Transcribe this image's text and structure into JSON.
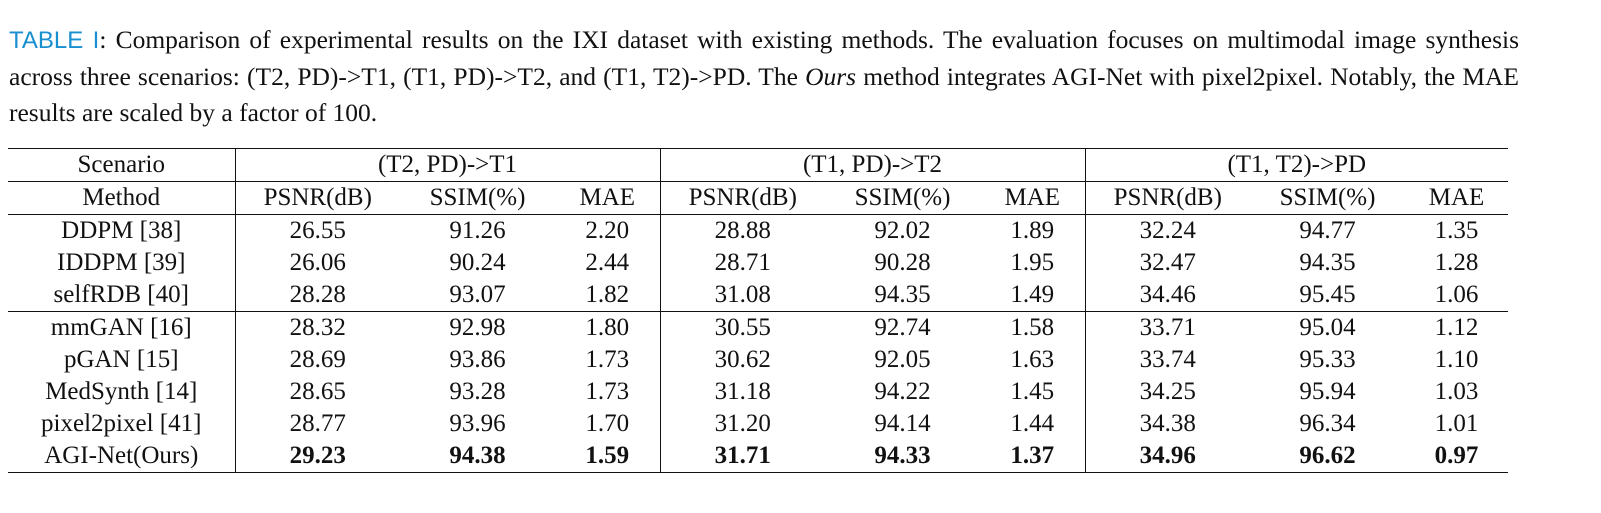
{
  "caption": {
    "label": "TABLE I",
    "parts": [
      ": Comparison of experimental results on the IXI dataset with existing methods. The evaluation focuses on multimodal image synthesis across three scenarios: (T2, PD)->T1, (T1, PD)->T2, and (T1, T2)->PD. The ",
      "Ours",
      " method integrates AGI-Net with pixel2pixel. Notably, the MAE results are scaled by a factor of 100."
    ]
  },
  "table": {
    "header": {
      "scenario_label": "Scenario",
      "scenarios": [
        "(T2, PD)->T1",
        "(T1, PD)->T2",
        "(T1, T2)->PD"
      ],
      "method_label": "Method",
      "metrics": [
        "PSNR(dB)",
        "SSIM(%)",
        "MAE"
      ]
    },
    "groups": [
      [
        {
          "method": "DDPM [38]",
          "values": [
            "26.55",
            "91.26",
            "2.20",
            "28.88",
            "92.02",
            "1.89",
            "32.24",
            "94.77",
            "1.35"
          ]
        },
        {
          "method": "IDDPM [39]",
          "values": [
            "26.06",
            "90.24",
            "2.44",
            "28.71",
            "90.28",
            "1.95",
            "32.47",
            "94.35",
            "1.28"
          ]
        },
        {
          "method": "selfRDB [40]",
          "values": [
            "28.28",
            "93.07",
            "1.82",
            "31.08",
            "94.35",
            "1.49",
            "34.46",
            "95.45",
            "1.06"
          ]
        }
      ],
      [
        {
          "method": "mmGAN [16]",
          "values": [
            "28.32",
            "92.98",
            "1.80",
            "30.55",
            "92.74",
            "1.58",
            "33.71",
            "95.04",
            "1.12"
          ]
        },
        {
          "method": "pGAN [15]",
          "values": [
            "28.69",
            "93.86",
            "1.73",
            "30.62",
            "92.05",
            "1.63",
            "33.74",
            "95.33",
            "1.10"
          ]
        },
        {
          "method": "MedSynth [14]",
          "values": [
            "28.65",
            "93.28",
            "1.73",
            "31.18",
            "94.22",
            "1.45",
            "34.25",
            "95.94",
            "1.03"
          ]
        },
        {
          "method": "pixel2pixel [41]",
          "values": [
            "28.77",
            "93.96",
            "1.70",
            "31.20",
            "94.14",
            "1.44",
            "34.38",
            "96.34",
            "1.01"
          ]
        },
        {
          "method": "AGI-Net(Ours)",
          "bold": true,
          "values": [
            "29.23",
            "94.38",
            "1.59",
            "31.71",
            "94.33",
            "1.37",
            "34.96",
            "96.62",
            "0.97"
          ]
        }
      ]
    ]
  }
}
